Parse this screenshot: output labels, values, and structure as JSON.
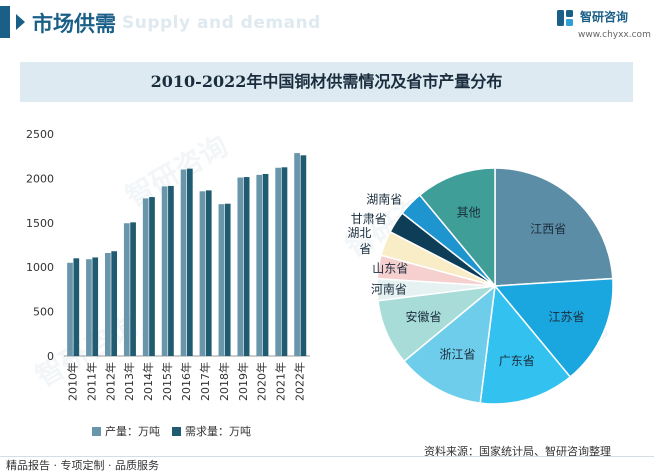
{
  "header": {
    "section_title": "市场供需",
    "ghost_text": "Supply and demand",
    "logo_name": "智研咨询",
    "logo_url": "www.chyxx.com"
  },
  "chart_title": "2010-2022年中国铜材供需情况及省市产量分布",
  "watermark": "智研咨询",
  "source": "资料来源：国家统计局、智研咨询整理",
  "footer": "精品报告 · 专项定制 · 品质服务",
  "colors": {
    "production": "#6a96ac",
    "demand": "#1f5c72",
    "brand": "#1a5f87"
  },
  "chart_data": [
    {
      "type": "bar",
      "title": "2010-2022年中国铜材供需情况",
      "categories": [
        "2010年",
        "2011年",
        "2012年",
        "2013年",
        "2014年",
        "2015年",
        "2016年",
        "2017年",
        "2018年",
        "2019年",
        "2020年",
        "2021年",
        "2022年"
      ],
      "series": [
        {
          "name": "产量：万吨",
          "values": [
            1050,
            1090,
            1160,
            1495,
            1775,
            1910,
            2100,
            1855,
            1710,
            2010,
            2040,
            2120,
            2285
          ]
        },
        {
          "name": "需求量：万吨",
          "values": [
            1100,
            1110,
            1180,
            1505,
            1790,
            1915,
            2110,
            1865,
            1715,
            2015,
            2050,
            2125,
            2260
          ]
        }
      ],
      "ylim": [
        0,
        2500
      ],
      "yticks": [
        0,
        500,
        1000,
        1500,
        2000,
        2500
      ],
      "legend": "bottom"
    },
    {
      "type": "pie",
      "title": "省市产量分布",
      "slices": [
        {
          "label": "江西省",
          "value": 24.0,
          "color": "#5b8ea6"
        },
        {
          "label": "江苏省",
          "value": 15.0,
          "color": "#1aa6df"
        },
        {
          "label": "广东省",
          "value": 13.0,
          "color": "#33c2f0"
        },
        {
          "label": "浙江省",
          "value": 12.0,
          "color": "#6fcdec"
        },
        {
          "label": "安徽省",
          "value": 9.0,
          "color": "#a7dcd9"
        },
        {
          "label": "河南省",
          "value": 3.0,
          "color": "#e6f2f2"
        },
        {
          "label": "山东省",
          "value": 3.2,
          "color": "#f6cfcf"
        },
        {
          "label": "湖北省",
          "value": 3.4,
          "color": "#f8edc6"
        },
        {
          "label": "甘肃省",
          "value": 3.0,
          "color": "#0d3d57"
        },
        {
          "label": "湖南省",
          "value": 3.4,
          "color": "#1f95d0"
        },
        {
          "label": "其他",
          "value": 11.0,
          "color": "#3f9e97"
        }
      ]
    }
  ]
}
